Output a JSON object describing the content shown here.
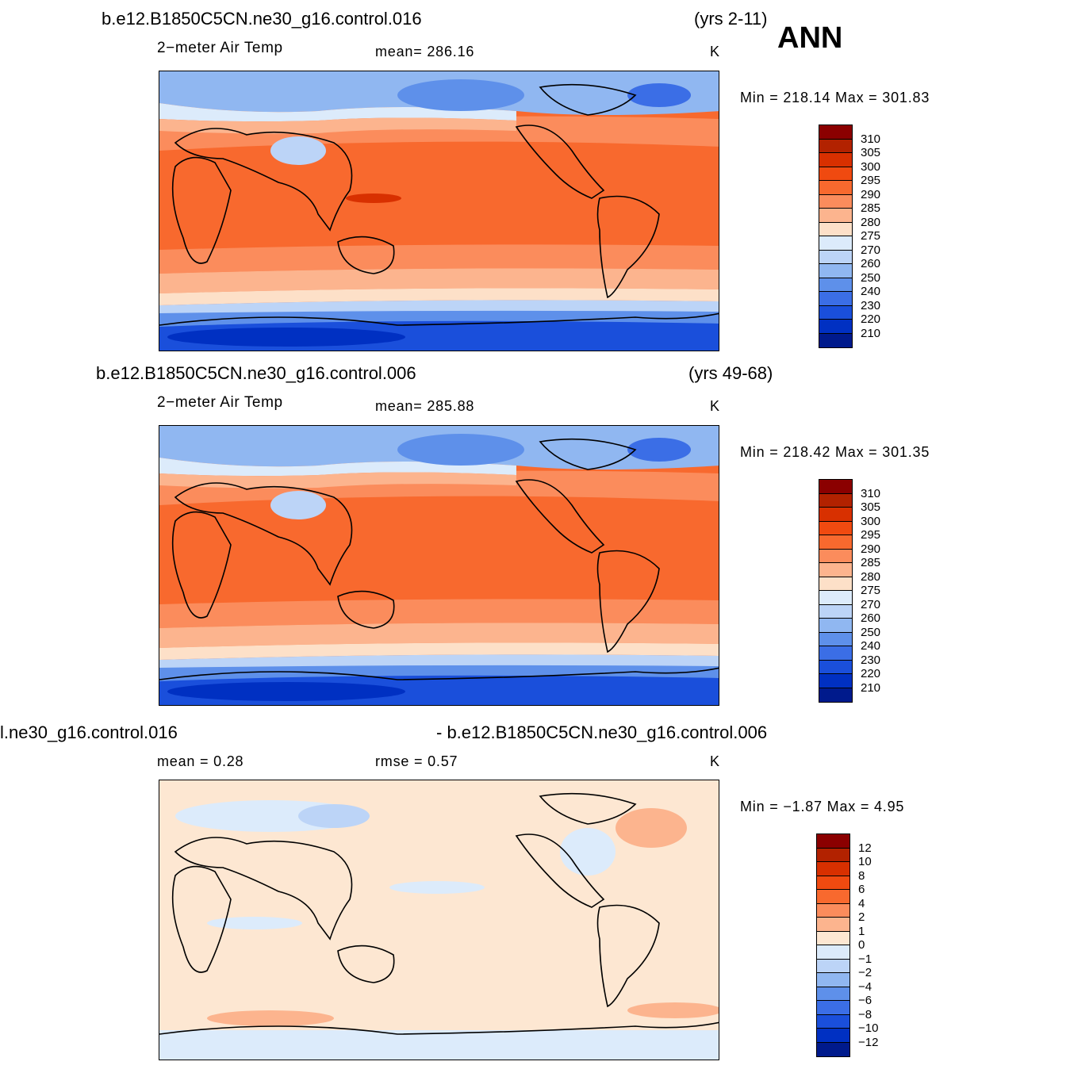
{
  "season": "ANN",
  "panels": [
    {
      "case_title": "b.e12.B1850C5CN.ne30_g16.control.016",
      "years": "(yrs 2-11)",
      "variable": "2−meter Air Temp",
      "stat_left": "mean=  286.16",
      "units": "K",
      "minmax": "Min  =  218.14  Max  =  301.83",
      "colorbar": {
        "labels": [
          "310",
          "305",
          "300",
          "295",
          "290",
          "285",
          "280",
          "275",
          "270",
          "260",
          "250",
          "240",
          "230",
          "220",
          "210"
        ],
        "colors": [
          "#8b0000",
          "#b22200",
          "#d83000",
          "#f04a10",
          "#f8692e",
          "#fb8c5c",
          "#fcb48e",
          "#fde0c8",
          "#dcebfb",
          "#bcd4f7",
          "#90b7f1",
          "#5e90ea",
          "#3b6ee6",
          "#1a4fdb",
          "#0030c2",
          "#001a8c"
        ]
      }
    },
    {
      "case_title": "b.e12.B1850C5CN.ne30_g16.control.006",
      "years": "(yrs 49-68)",
      "variable": "2−meter Air Temp",
      "stat_left": "mean=  285.88",
      "units": "K",
      "minmax": "Min  =  218.42  Max  =  301.35",
      "colorbar": {
        "labels": [
          "310",
          "305",
          "300",
          "295",
          "290",
          "285",
          "280",
          "275",
          "270",
          "260",
          "250",
          "240",
          "230",
          "220",
          "210"
        ],
        "colors": [
          "#8b0000",
          "#b22200",
          "#d83000",
          "#f04a10",
          "#f8692e",
          "#fb8c5c",
          "#fcb48e",
          "#fde0c8",
          "#dcebfb",
          "#bcd4f7",
          "#90b7f1",
          "#5e90ea",
          "#3b6ee6",
          "#1a4fdb",
          "#0030c2",
          "#001a8c"
        ]
      }
    },
    {
      "case_title": "l.ne30_g16.control.016",
      "case_title_right": "- b.e12.B1850C5CN.ne30_g16.control.006",
      "stat_left": "mean  =     0.28",
      "stat_mid": "rmse  =     0.57",
      "units": "K",
      "minmax": "Min  =    −1.87  Max  =      4.95",
      "colorbar": {
        "labels": [
          "12",
          "10",
          "8",
          "6",
          "4",
          "2",
          "1",
          "0",
          "−1",
          "−2",
          "−4",
          "−6",
          "−8",
          "−10",
          "−12"
        ],
        "colors": [
          "#8b0000",
          "#b22200",
          "#d83000",
          "#f04a10",
          "#f8692e",
          "#fb8c5c",
          "#fcb48e",
          "#fde7d2",
          "#dcebfb",
          "#bcd4f7",
          "#90b7f1",
          "#5e90ea",
          "#3b6ee6",
          "#1a4fdb",
          "#0030c2",
          "#001a8c"
        ]
      }
    }
  ]
}
